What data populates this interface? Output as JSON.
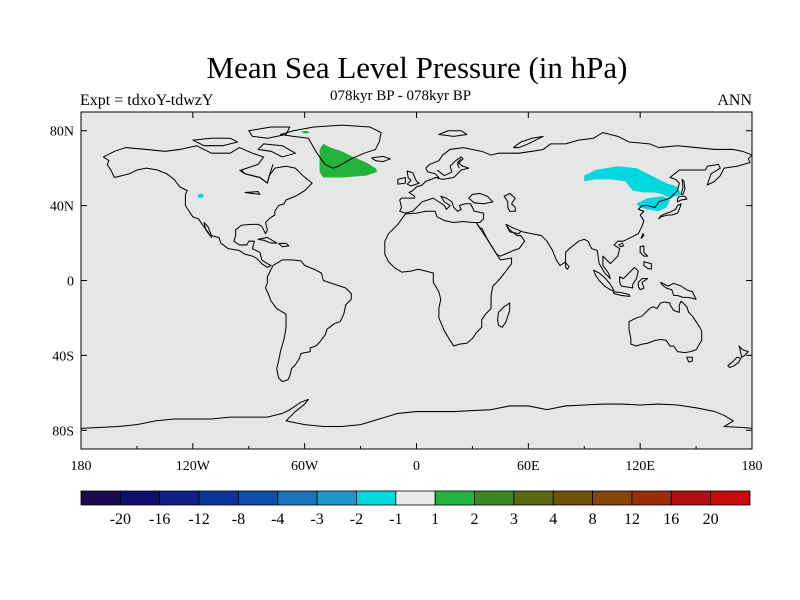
{
  "title": "Mean Sea Level Pressure (in hPa)",
  "left_label": "Expt = tdxoY-tdwzY",
  "center_label": "078kyr BP - 078kyr BP",
  "right_label": "ANN",
  "map": {
    "projection": "cylindrical-equidistant",
    "lon_range": [
      -180,
      180
    ],
    "lat_range": [
      -90,
      90
    ],
    "background_color": "#e6e6e6",
    "coastline_color": "#000000",
    "x_ticks": [
      "180",
      "120W",
      "60W",
      "0",
      "60E",
      "120E",
      "180"
    ],
    "y_ticks": [
      "80N",
      "40N",
      "0",
      "40S",
      "80S"
    ]
  },
  "anomalies": [
    {
      "region": "Greenland Sea / east of Greenland",
      "category": "1 to 2",
      "color": "#23b33d"
    },
    {
      "region": "Greenland north coast",
      "category": "1 to 2",
      "color": "#23b33d"
    },
    {
      "region": "Mongolia / northern China / Siberia",
      "category": "-2 to -1",
      "color": "#00d8e0"
    },
    {
      "region": "Northeast China / Sea of Japan",
      "category": "-2 to -1",
      "color": "#00d8e0"
    },
    {
      "region": "Western North America (Great Basin)",
      "category": "-2 to -1",
      "color": "#00d8e0"
    }
  ],
  "colorbar": {
    "colors": [
      "#1a0a4e",
      "#10106c",
      "#0f1f8a",
      "#0b3598",
      "#0e4fab",
      "#1b72bd",
      "#1f98c9",
      "#00d8e0",
      "#e9e9e9",
      "#23b33d",
      "#3e8624",
      "#5a6912",
      "#6b5409",
      "#84460a",
      "#9a2e0a",
      "#b10f0f",
      "#c80a0a"
    ],
    "labels": [
      "-20",
      "-16",
      "-12",
      "-8",
      "-4",
      "-3",
      "-2",
      "-1",
      "1",
      "2",
      "3",
      "4",
      "8",
      "12",
      "16",
      "20"
    ]
  }
}
